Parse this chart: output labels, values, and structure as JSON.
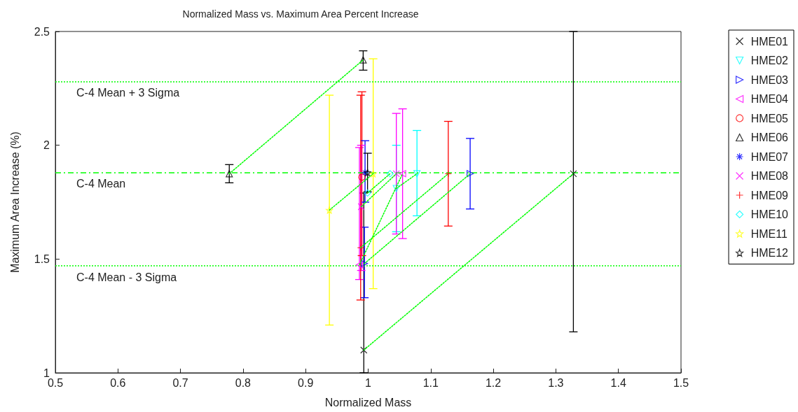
{
  "chart_data": {
    "type": "scatter",
    "title": "Normalized Mass vs. Maximum Area Percent Increase",
    "xlabel": "Normalized Mass",
    "ylabel": "Maximum Area Increase (%)",
    "xlim": [
      0.5,
      1.5
    ],
    "xticks": [
      0.5,
      0.6,
      0.7,
      0.8,
      0.9,
      1,
      1.1,
      1.2,
      1.3,
      1.4,
      1.5
    ],
    "ylim": [
      1,
      2.5
    ],
    "yticks": [
      1,
      1.5,
      2,
      2.5
    ],
    "grid": false,
    "legend": "right",
    "ref_lines": [
      {
        "axis": "y",
        "value": 2.28,
        "label": "C-4 Mean + 3 Sigma",
        "color": "#00ff00",
        "line_style": "dotted"
      },
      {
        "axis": "y",
        "value": 1.875,
        "label": "C-4 Mean",
        "color": "#00ff00",
        "line_style": "dashed"
      },
      {
        "axis": "y",
        "value": 1.47,
        "label": "C-4 Mean - 3 Sigma",
        "color": "#00ff00",
        "line_style": "dotted"
      }
    ],
    "series": [
      {
        "name": "HME01",
        "color": "#000000",
        "marker": "x",
        "x": [
          0.993,
          1.328
        ],
        "values": [
          1.1,
          1.875
        ],
        "errors": [
          [
            1.0,
            1.79
          ],
          [
            1.18,
            2.5
          ]
        ]
      },
      {
        "name": "HME02",
        "color": "#00ffff",
        "marker": "triangle-down",
        "x": [
          1.045,
          1.078
        ],
        "values": [
          1.81,
          1.875
        ],
        "errors": [
          [
            1.62,
            2.0
          ],
          [
            1.69,
            2.065
          ]
        ]
      },
      {
        "name": "HME03",
        "color": "#0000ff",
        "marker": "triangle-right",
        "x": [
          0.994,
          1.163
        ],
        "values": [
          1.48,
          1.875
        ],
        "errors": [
          [
            1.33,
            1.64
          ],
          [
            1.72,
            2.03
          ]
        ]
      },
      {
        "name": "HME04",
        "color": "#ff00ff",
        "marker": "triangle-left",
        "x": [
          0.986,
          1.055
        ],
        "values": [
          1.475,
          1.875
        ],
        "errors": [
          [
            1.41,
            1.99
          ],
          [
            1.59,
            2.16
          ]
        ]
      },
      {
        "name": "HME05",
        "color": "#ff0000",
        "marker": "circle",
        "x": [
          0.99
        ],
        "values": [
          1.86
        ],
        "errors": [
          [
            1.515,
            2.235
          ]
        ]
      },
      {
        "name": "HME06",
        "color": "#000000",
        "marker": "triangle",
        "x": [
          0.778,
          0.992
        ],
        "values": [
          1.875,
          2.375
        ],
        "errors": [
          [
            1.835,
            1.915
          ],
          [
            2.33,
            2.415
          ]
        ]
      },
      {
        "name": "HME07",
        "color": "#0000ff",
        "marker": "cross",
        "x": [
          0.995
        ],
        "values": [
          1.88
        ],
        "errors": [
          [
            1.75,
            2.02
          ]
        ]
      },
      {
        "name": "HME08",
        "color": "#ff00ff",
        "marker": "x",
        "x": [
          0.989,
          1.045
        ],
        "values": [
          1.73,
          1.875
        ],
        "errors": [
          [
            1.45,
            2.0
          ],
          [
            1.61,
            2.14
          ]
        ]
      },
      {
        "name": "HME09",
        "color": "#ff0000",
        "marker": "plus",
        "x": [
          0.988,
          1.128
        ],
        "values": [
          1.55,
          1.875
        ],
        "errors": [
          [
            1.32,
            2.22
          ],
          [
            1.645,
            2.105
          ]
        ]
      },
      {
        "name": "HME10",
        "color": "#00ffff",
        "marker": "diamond",
        "x": [
          0.999,
          1.035
        ],
        "values": [
          1.79,
          1.875
        ]
      },
      {
        "name": "HME11",
        "color": "#ffff00",
        "marker": "star",
        "x": [
          0.938,
          1.008
        ],
        "values": [
          1.715,
          1.875
        ],
        "errors": [
          [
            1.21,
            2.22
          ],
          [
            1.37,
            2.38
          ]
        ]
      },
      {
        "name": "HME12",
        "color": "#000000",
        "marker": "star",
        "x": [
          0.999
        ],
        "values": [
          1.88
        ],
        "errors": [
          [
            1.795,
            1.965
          ]
        ]
      },
      {
        "type": "line",
        "color": "#00ff00",
        "marker": "none",
        "line_style": "dotted",
        "x": [
          0.993,
          1.328
        ],
        "values": [
          1.1,
          1.875
        ]
      },
      {
        "type": "line",
        "color": "#00ff00",
        "marker": "none",
        "line_style": "dotted",
        "x": [
          1.045,
          1.078
        ],
        "values": [
          1.81,
          1.875
        ]
      },
      {
        "type": "line",
        "color": "#00ff00",
        "marker": "none",
        "line_style": "dotted",
        "x": [
          0.994,
          1.163
        ],
        "values": [
          1.48,
          1.875
        ]
      },
      {
        "type": "line",
        "color": "#00ff00",
        "marker": "none",
        "line_style": "dotted",
        "x": [
          0.986,
          1.055
        ],
        "values": [
          1.475,
          1.875
        ]
      },
      {
        "type": "line",
        "color": "#00ff00",
        "marker": "none",
        "line_style": "dotted",
        "x": [
          0.778,
          0.992
        ],
        "values": [
          1.875,
          2.375
        ]
      },
      {
        "type": "line",
        "color": "#00ff00",
        "marker": "none",
        "line_style": "dotted",
        "x": [
          0.989,
          1.045
        ],
        "values": [
          1.73,
          1.875
        ]
      },
      {
        "type": "line",
        "color": "#00ff00",
        "marker": "none",
        "line_style": "dotted",
        "x": [
          0.988,
          1.128
        ],
        "values": [
          1.55,
          1.875
        ]
      },
      {
        "type": "line",
        "color": "#00ff00",
        "marker": "none",
        "line_style": "dotted",
        "x": [
          0.999,
          1.035
        ],
        "values": [
          1.79,
          1.875
        ]
      },
      {
        "type": "line",
        "color": "#00ff00",
        "marker": "none",
        "line_style": "dotted",
        "x": [
          0.938,
          1.008
        ],
        "values": [
          1.715,
          1.875
        ]
      }
    ]
  }
}
